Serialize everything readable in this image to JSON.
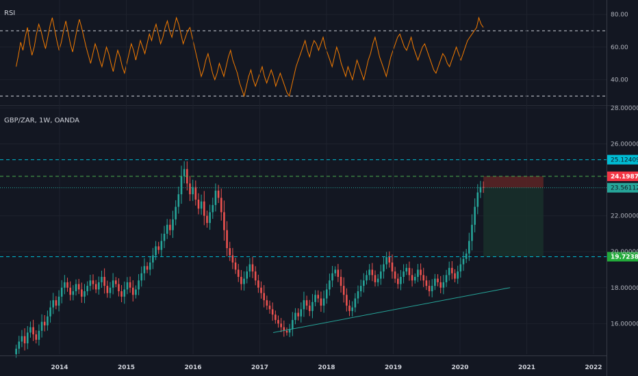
{
  "colors": {
    "background": "#131722",
    "grid": "#1e222d",
    "axis_line": "#363a45",
    "up": "#26a69a",
    "down": "#ef5350",
    "rsi_line": "#f57c00",
    "rsi_band": "#d1d4dc",
    "level_cyan": "#00bcd4",
    "level_green": "#4caf50",
    "last_price": "#26a69a",
    "stop_zone": "#5d2424",
    "target_zone": "#19302a",
    "trendline": "#26a69a"
  },
  "chart_data": [
    {
      "type": "line",
      "title": "RSI",
      "ylim": [
        26,
        88
      ],
      "y_ticks": [
        "80.00",
        "60.00",
        "40.00"
      ],
      "y_tick_values": [
        80,
        60,
        40
      ],
      "bands": [
        70,
        30
      ],
      "x_start": 2013.35,
      "x_end": 2020.35,
      "values": [
        48,
        55,
        63,
        58,
        66,
        72,
        62,
        55,
        60,
        68,
        74,
        70,
        64,
        59,
        66,
        73,
        78,
        71,
        64,
        58,
        63,
        70,
        76,
        69,
        62,
        57,
        64,
        71,
        77,
        72,
        66,
        60,
        55,
        50,
        56,
        62,
        58,
        52,
        48,
        54,
        60,
        56,
        50,
        45,
        52,
        58,
        54,
        48,
        44,
        50,
        56,
        62,
        58,
        52,
        58,
        64,
        60,
        56,
        62,
        68,
        64,
        70,
        74,
        68,
        62,
        66,
        72,
        76,
        70,
        66,
        72,
        78,
        74,
        68,
        62,
        66,
        70,
        72,
        66,
        60,
        54,
        48,
        42,
        46,
        52,
        56,
        50,
        44,
        40,
        44,
        50,
        46,
        42,
        48,
        54,
        58,
        52,
        48,
        44,
        38,
        34,
        30,
        36,
        42,
        46,
        40,
        36,
        40,
        44,
        48,
        42,
        38,
        42,
        46,
        42,
        36,
        40,
        44,
        40,
        36,
        32,
        30,
        36,
        42,
        48,
        52,
        56,
        60,
        64,
        58,
        54,
        60,
        64,
        62,
        58,
        62,
        66,
        60,
        56,
        52,
        48,
        54,
        60,
        56,
        50,
        46,
        42,
        48,
        44,
        40,
        46,
        52,
        48,
        44,
        40,
        46,
        52,
        56,
        62,
        66,
        60,
        54,
        50,
        46,
        42,
        48,
        54,
        58,
        62,
        66,
        68,
        64,
        60,
        58,
        62,
        66,
        60,
        56,
        52,
        56,
        60,
        62,
        58,
        54,
        50,
        46,
        44,
        48,
        52,
        56,
        54,
        50,
        48,
        52,
        56,
        60,
        56,
        52,
        56,
        60,
        64,
        66,
        68,
        70,
        72,
        78,
        74,
        72
      ]
    },
    {
      "type": "candlestick",
      "title": "GBP/ZAR, 1W, OANDA",
      "ylim": [
        14.3,
        28.0
      ],
      "y_ticks": [
        "28.00000",
        "26.00000",
        "22.00000",
        "20.00000",
        "18.00000",
        "16.00000"
      ],
      "y_tick_values": [
        28,
        26,
        22,
        20,
        18,
        16
      ],
      "x_ticks": [
        "2014",
        "2015",
        "2016",
        "2017",
        "2018",
        "2019",
        "2020",
        "2021",
        "2022"
      ],
      "x_tick_values": [
        2014,
        2015,
        2016,
        2017,
        2018,
        2019,
        2020,
        2021,
        2022
      ],
      "x_start": 2013.35,
      "x_end": 2020.35,
      "closes": [
        14.6,
        15.0,
        15.3,
        14.9,
        15.5,
        15.8,
        15.4,
        15.1,
        15.6,
        16.1,
        15.9,
        16.4,
        16.9,
        17.3,
        17.0,
        17.5,
        18.0,
        18.3,
        18.0,
        17.6,
        17.8,
        18.2,
        17.9,
        17.5,
        17.8,
        18.1,
        18.4,
        18.2,
        17.9,
        18.3,
        18.6,
        18.1,
        17.7,
        18.0,
        18.4,
        18.2,
        17.8,
        17.5,
        17.9,
        18.3,
        18.0,
        17.6,
        17.9,
        18.4,
        18.8,
        19.2,
        19.0,
        19.4,
        19.8,
        20.3,
        20.1,
        20.6,
        21.0,
        21.5,
        21.2,
        21.8,
        22.5,
        23.2,
        24.2,
        24.6,
        23.8,
        23.2,
        23.6,
        22.9,
        22.4,
        22.8,
        22.0,
        21.6,
        22.2,
        22.6,
        23.4,
        23.0,
        22.2,
        21.2,
        20.2,
        19.8,
        19.4,
        19.0,
        18.6,
        18.2,
        18.5,
        18.9,
        19.3,
        18.9,
        18.4,
        18.0,
        17.7,
        17.3,
        17.0,
        16.8,
        16.5,
        16.2,
        16.0,
        15.8,
        15.6,
        15.5,
        15.7,
        16.2,
        16.6,
        16.4,
        16.8,
        17.3,
        17.0,
        16.7,
        17.2,
        17.6,
        17.4,
        17.0,
        17.4,
        17.9,
        18.4,
        18.8,
        19.0,
        18.6,
        18.1,
        17.6,
        17.0,
        16.7,
        16.9,
        17.4,
        17.8,
        18.1,
        18.4,
        18.7,
        19.0,
        18.7,
        18.3,
        18.5,
        18.9,
        19.3,
        19.7,
        19.4,
        18.9,
        18.5,
        18.2,
        18.6,
        18.9,
        19.1,
        18.7,
        18.4,
        18.6,
        19.0,
        18.7,
        18.4,
        18.1,
        17.8,
        18.1,
        18.5,
        18.3,
        18.0,
        18.3,
        18.7,
        19.1,
        18.8,
        18.5,
        18.9,
        19.3,
        19.6,
        19.9,
        20.6,
        21.5,
        22.5,
        23.3,
        23.6,
        23.56
      ],
      "levels": [
        {
          "label": "25.12409",
          "value": 25.12409,
          "color_key": "level_cyan",
          "dash": "dashed"
        },
        {
          "label": "24.19870",
          "value": 24.1987,
          "color_key": "level_green",
          "dash": "dashed"
        },
        {
          "label": "23.56112",
          "value": 23.56112,
          "color_key": "last_price",
          "dash": "dotted"
        },
        {
          "label": "19.72380",
          "value": 19.7238,
          "color_key": "level_cyan",
          "dash": "dashed"
        }
      ],
      "trendline": [
        {
          "x": 2017.2,
          "y": 15.5
        },
        {
          "x": 2020.75,
          "y": 18.0
        }
      ],
      "position": {
        "x_start": 2020.35,
        "x_end": 2021.25,
        "entry": 23.56112,
        "stop": 24.1987,
        "target": 19.7238
      }
    }
  ]
}
